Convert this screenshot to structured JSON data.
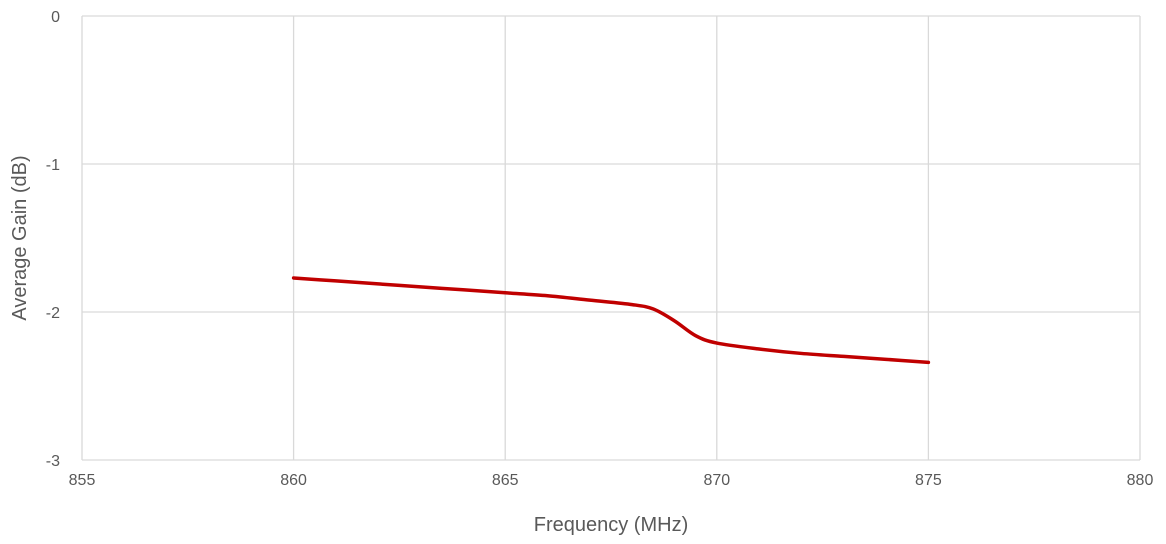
{
  "chart_data": {
    "type": "line",
    "title": "",
    "xlabel": "Frequency (MHz)",
    "ylabel": "Average Gain (dB)",
    "xlim": [
      855,
      880
    ],
    "ylim": [
      -3,
      0
    ],
    "x_ticks": [
      "855",
      "860",
      "865",
      "870",
      "875",
      "880"
    ],
    "y_ticks": [
      "0",
      "-1",
      "-2",
      "-3"
    ],
    "grid": true,
    "legend": "none",
    "series": [
      {
        "color": "#c00000",
        "x": [
          860,
          861,
          862,
          863,
          864,
          865,
          866,
          867,
          868,
          868.5,
          869,
          869.5,
          870,
          871,
          872,
          873,
          874,
          875
        ],
        "y": [
          -1.77,
          -1.79,
          -1.81,
          -1.83,
          -1.85,
          -1.87,
          -1.89,
          -1.92,
          -1.95,
          -1.98,
          -2.06,
          -2.16,
          -2.21,
          -2.25,
          -2.28,
          -2.3,
          -2.32,
          -2.34
        ]
      }
    ]
  }
}
